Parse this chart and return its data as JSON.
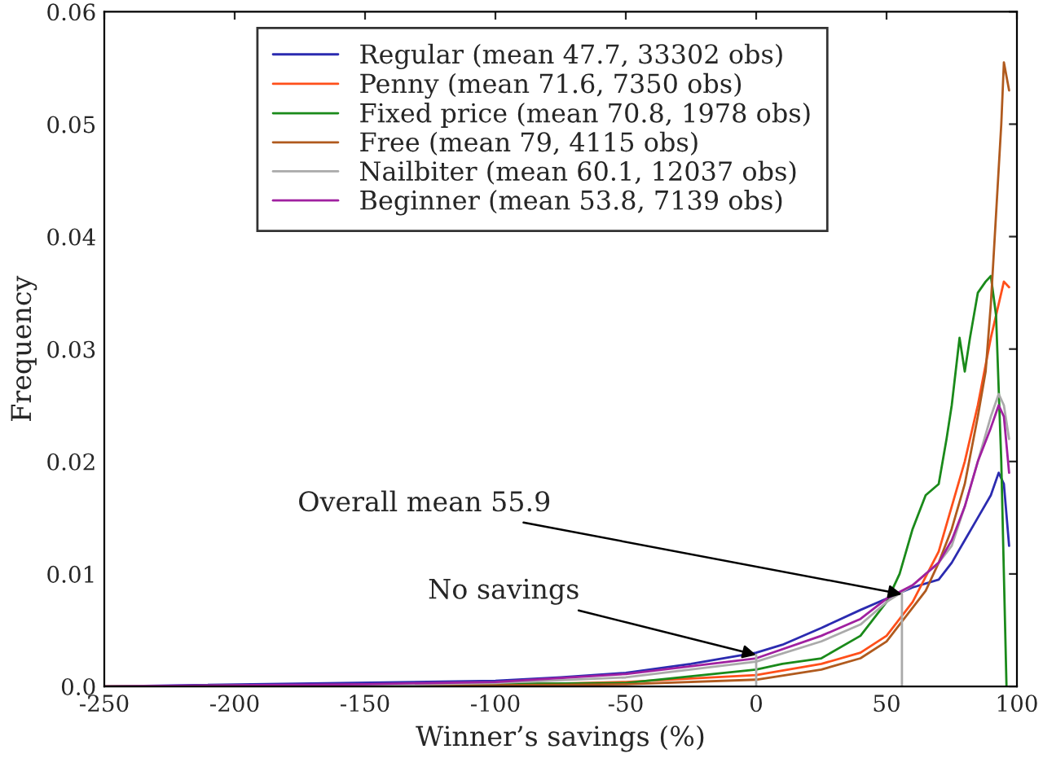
{
  "chart_data": {
    "type": "line",
    "xlabel": "Winner’s savings (%)",
    "ylabel": "Frequency",
    "xlim": [
      -250,
      100
    ],
    "xticks": [
      -250,
      -200,
      -150,
      -100,
      -50,
      0,
      50,
      100
    ],
    "ylim": [
      0,
      0.06
    ],
    "yticks": [
      {
        "value": 0,
        "label": "0.0"
      },
      0.01,
      0.02,
      0.03,
      0.04,
      0.05,
      0.06
    ],
    "grid": false,
    "legend": "top",
    "annotations": [
      {
        "text": "Overall mean 55.9",
        "x": 55.9,
        "y": 0.0082
      },
      {
        "text": "No savings",
        "x": 0,
        "y": 0.0028
      }
    ],
    "series": [
      {
        "name": "Regular (mean 47.7, 33302 obs)",
        "color": "#2b2bb0",
        "x": [
          -250,
          -100,
          -75,
          -50,
          -25,
          0,
          10,
          25,
          40,
          50,
          60,
          70,
          75,
          80,
          85,
          90,
          93,
          95,
          97
        ],
        "values": [
          0,
          0.0005,
          0.0008,
          0.0012,
          0.002,
          0.003,
          0.0037,
          0.0052,
          0.0068,
          0.0078,
          0.0088,
          0.0095,
          0.011,
          0.013,
          0.015,
          0.017,
          0.019,
          0.018,
          0.0125
        ]
      },
      {
        "name": "Penny (mean 71.6, 7350 obs)",
        "color": "#ff4f1a",
        "x": [
          -250,
          -100,
          -50,
          0,
          25,
          40,
          50,
          60,
          70,
          75,
          80,
          85,
          90,
          95,
          97
        ],
        "values": [
          0,
          0.0001,
          0.0004,
          0.001,
          0.002,
          0.003,
          0.0045,
          0.0075,
          0.012,
          0.016,
          0.02,
          0.025,
          0.031,
          0.036,
          0.0355
        ]
      },
      {
        "name": "Fixed price (mean 70.8, 1978 obs)",
        "color": "#1a8a1a",
        "x": [
          -250,
          -50,
          0,
          10,
          25,
          40,
          50,
          55,
          60,
          65,
          70,
          73,
          75,
          78,
          80,
          82,
          85,
          88,
          90,
          92,
          94,
          96
        ],
        "values": [
          0,
          0.0003,
          0.0015,
          0.002,
          0.0025,
          0.0045,
          0.0075,
          0.01,
          0.014,
          0.017,
          0.018,
          0.022,
          0.025,
          0.031,
          0.028,
          0.031,
          0.035,
          0.036,
          0.0365,
          0.033,
          0.02,
          0.0
        ]
      },
      {
        "name": "Free (mean 79, 4115 obs)",
        "color": "#b05a1e",
        "x": [
          -250,
          -100,
          -50,
          0,
          25,
          40,
          50,
          60,
          65,
          70,
          75,
          80,
          85,
          88,
          90,
          92,
          94,
          95,
          97
        ],
        "values": [
          0,
          0.0001,
          0.0002,
          0.0006,
          0.0015,
          0.0025,
          0.004,
          0.007,
          0.0085,
          0.011,
          0.014,
          0.018,
          0.024,
          0.028,
          0.034,
          0.042,
          0.05,
          0.0555,
          0.053
        ]
      },
      {
        "name": "Nailbiter (mean 60.1, 12037 obs)",
        "color": "#aaaaaa",
        "x": [
          -250,
          -150,
          -100,
          -50,
          0,
          25,
          40,
          50,
          60,
          70,
          75,
          80,
          85,
          90,
          93,
          95,
          97
        ],
        "values": [
          0,
          0.0001,
          0.0003,
          0.0008,
          0.0022,
          0.004,
          0.0055,
          0.0075,
          0.009,
          0.011,
          0.0125,
          0.016,
          0.02,
          0.024,
          0.026,
          0.025,
          0.022
        ]
      },
      {
        "name": "Beginner (mean 53.8, 7139 obs)",
        "color": "#a020a0",
        "x": [
          -250,
          -150,
          -100,
          -50,
          0,
          25,
          40,
          50,
          60,
          70,
          75,
          80,
          85,
          90,
          93,
          95,
          97
        ],
        "values": [
          0,
          0.0002,
          0.0004,
          0.0011,
          0.0025,
          0.0045,
          0.006,
          0.0078,
          0.009,
          0.011,
          0.013,
          0.016,
          0.02,
          0.023,
          0.025,
          0.024,
          0.019
        ]
      },
      {
        "color": "#aaaaaa",
        "x": [
          0,
          0
        ],
        "values": [
          0,
          0.0028
        ]
      },
      {
        "color": "#aaaaaa",
        "x": [
          55.9,
          55.9
        ],
        "values": [
          0,
          0.0082
        ]
      }
    ]
  }
}
